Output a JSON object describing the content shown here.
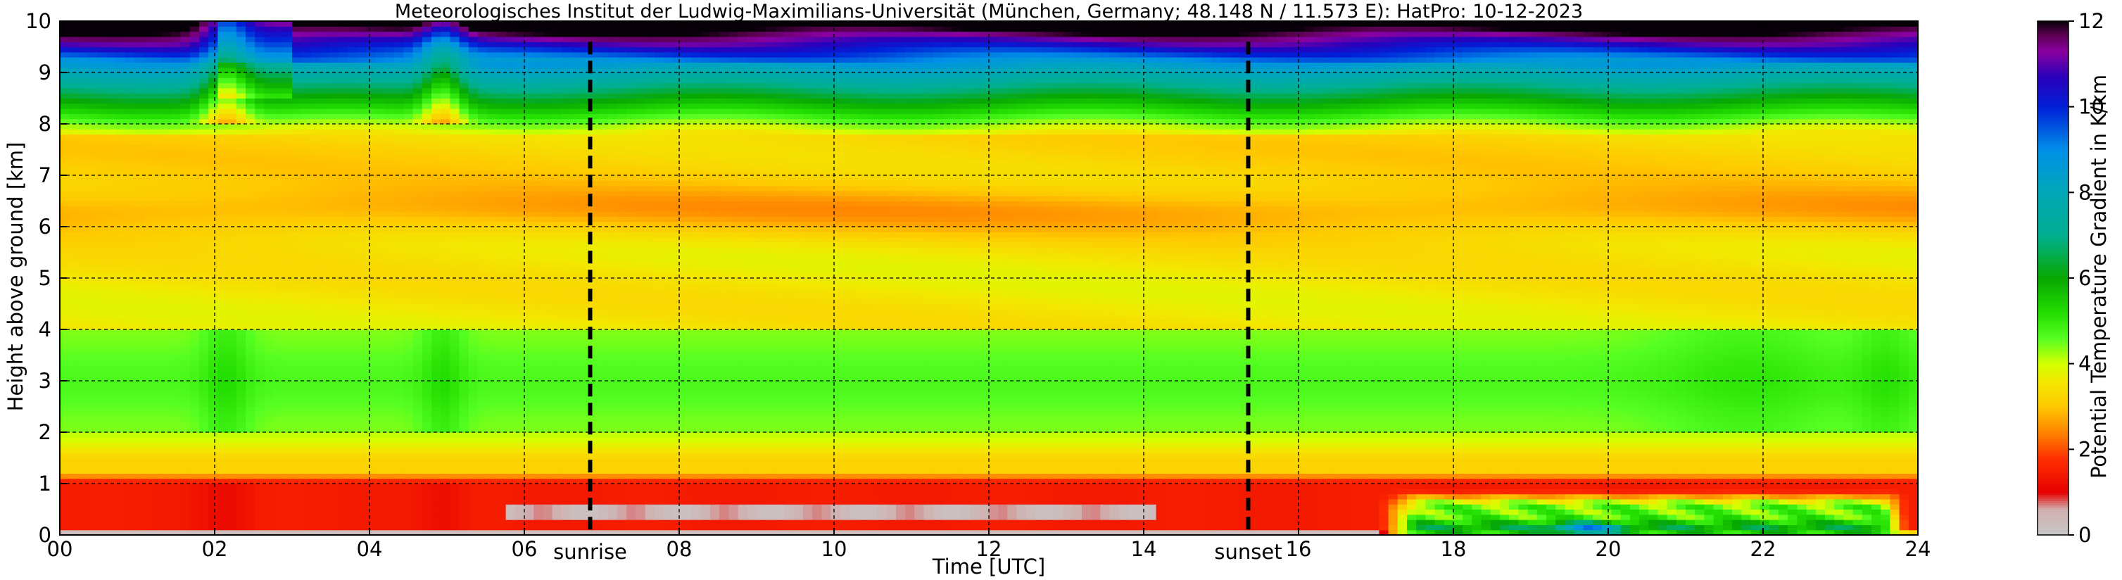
{
  "chart_data": {
    "type": "heatmap",
    "title": "Meteorologisches Institut der Ludwig-Maximilians-Universität (München, Germany; 48.148 N / 11.573 E):    HatPro: 10-12-2023",
    "xlabel": "Time [UTC]",
    "ylabel": "Height above ground [km]",
    "xlim": [
      0,
      24
    ],
    "ylim": [
      0,
      10
    ],
    "x_ticks": [
      0,
      2,
      4,
      6,
      8,
      10,
      12,
      14,
      16,
      18,
      20,
      22,
      24
    ],
    "x_tick_labels": [
      "00",
      "02",
      "04",
      "06",
      "08",
      "10",
      "12",
      "14",
      "16",
      "18",
      "20",
      "22",
      "24"
    ],
    "y_ticks": [
      0,
      1,
      2,
      3,
      4,
      5,
      6,
      7,
      8,
      9,
      10
    ],
    "y_tick_labels": [
      "0",
      "1",
      "2",
      "3",
      "4",
      "5",
      "6",
      "7",
      "8",
      "9",
      "10"
    ],
    "grid": true,
    "colorbar": {
      "label": "Potential Temperature Gradient in K/km",
      "min": 0,
      "max": 12,
      "ticks": [
        0,
        2,
        4,
        6,
        8,
        10,
        12
      ],
      "tick_labels": [
        "0",
        "2",
        "4",
        "6",
        "8",
        "10",
        "12"
      ]
    },
    "annotations": [
      {
        "text": "sunrise",
        "x": 6.85
      },
      {
        "text": "sunset",
        "x": 15.35
      }
    ],
    "colormap": [
      {
        "v": 0.0,
        "c": "#c8c8c8"
      },
      {
        "v": 0.6,
        "c": "#d0b0b0"
      },
      {
        "v": 1.0,
        "c": "#e60000"
      },
      {
        "v": 1.8,
        "c": "#ff3000"
      },
      {
        "v": 2.3,
        "c": "#ff7700"
      },
      {
        "v": 3.0,
        "c": "#ffc800"
      },
      {
        "v": 3.6,
        "c": "#f2e800"
      },
      {
        "v": 4.0,
        "c": "#d4ff00"
      },
      {
        "v": 4.6,
        "c": "#55ff22"
      },
      {
        "v": 5.2,
        "c": "#22dd00"
      },
      {
        "v": 6.0,
        "c": "#08a800"
      },
      {
        "v": 7.0,
        "c": "#00b090"
      },
      {
        "v": 8.0,
        "c": "#00a8b8"
      },
      {
        "v": 9.0,
        "c": "#0090e8"
      },
      {
        "v": 10.0,
        "c": "#0020d8"
      },
      {
        "v": 10.7,
        "c": "#2a00bb"
      },
      {
        "v": 11.3,
        "c": "#8a00a0"
      },
      {
        "v": 11.7,
        "c": "#5a0050"
      },
      {
        "v": 12.0,
        "c": "#080008"
      }
    ]
  }
}
